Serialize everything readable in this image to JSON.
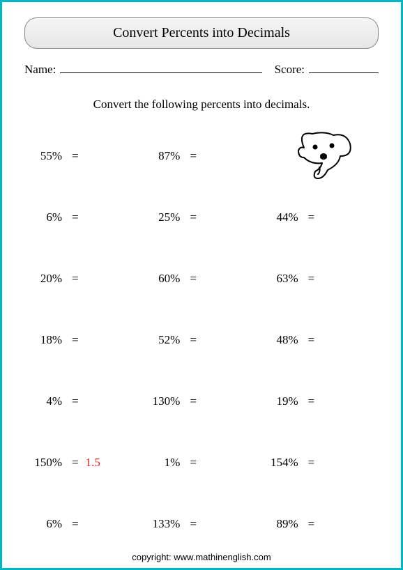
{
  "title": "Convert Percents into Decimals",
  "name_label": "Name:",
  "score_label": "Score:",
  "instruction": "Convert the following percents into decimals.",
  "colors": {
    "border": "#00b8c4",
    "answer": "#e02020",
    "text": "#000000",
    "title_bg_top": "#f5f5f5",
    "title_bg_bottom": "#e6e6e6"
  },
  "fonts": {
    "body_family": "Georgia, Times New Roman, serif",
    "title_size_pt": 15,
    "cell_size_pt": 13
  },
  "grid": {
    "rows": 7,
    "cols": 3
  },
  "problems": [
    {
      "percent": "55%",
      "answer": ""
    },
    {
      "percent": "87%",
      "answer": ""
    },
    {
      "type": "image"
    },
    {
      "percent": "6%",
      "answer": ""
    },
    {
      "percent": "25%",
      "answer": ""
    },
    {
      "percent": "44%",
      "answer": ""
    },
    {
      "percent": "20%",
      "answer": ""
    },
    {
      "percent": "60%",
      "answer": ""
    },
    {
      "percent": "63%",
      "answer": ""
    },
    {
      "percent": "18%",
      "answer": ""
    },
    {
      "percent": "52%",
      "answer": ""
    },
    {
      "percent": "48%",
      "answer": ""
    },
    {
      "percent": "4%",
      "answer": ""
    },
    {
      "percent": "130%",
      "answer": ""
    },
    {
      "percent": "19%",
      "answer": ""
    },
    {
      "percent": "150%",
      "answer": "1.5"
    },
    {
      "percent": "1%",
      "answer": ""
    },
    {
      "percent": "154%",
      "answer": ""
    },
    {
      "percent": "6%",
      "answer": ""
    },
    {
      "percent": "133%",
      "answer": ""
    },
    {
      "percent": "89%",
      "answer": ""
    }
  ],
  "equals": "=",
  "copyright": "copyright:   www.mathinenglish.com"
}
